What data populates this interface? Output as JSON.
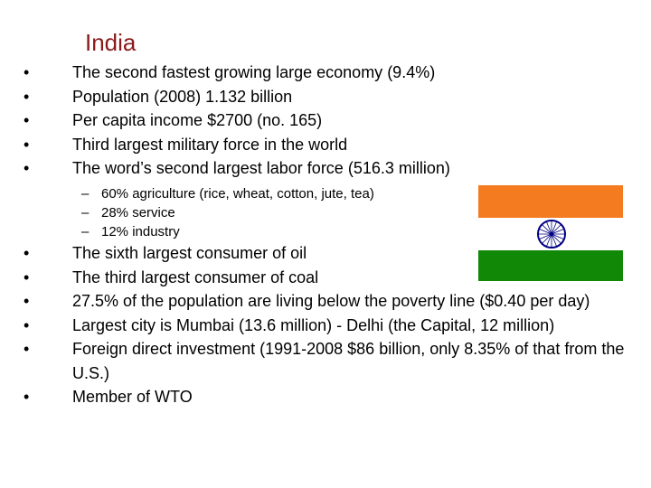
{
  "slide": {
    "title": "India",
    "bullet_glyph": "•",
    "dash_glyph": "–",
    "bullets_top": [
      "The second fastest growing large economy (9.4%)",
      "Population (2008) 1.132 billion",
      "Per capita income $2700 (no. 165)",
      "Third largest military force in the world",
      "The word’s second largest labor force (516.3 million)"
    ],
    "sub_bullets": [
      "60% agriculture (rice, wheat, cotton, jute, tea)",
      "28% service",
      "12% industry"
    ],
    "bullets_bottom": [
      "The sixth largest consumer of oil",
      "The third largest consumer of coal",
      "27.5% of the population are living below the poverty line ($0.40 per day)",
      "Largest city is Mumbai (13.6 million) - Delhi (the Capital, 12 million)",
      "Foreign direct investment (1991-2008 $86 billion, only 8.35% of that from the U.S.)",
      "Member of WTO"
    ]
  },
  "flag": {
    "icon": "india-flag-icon",
    "colors": {
      "saffron": "#f47b20",
      "white": "#ffffff",
      "green": "#128807",
      "chakra": "#000080"
    }
  },
  "colors": {
    "title": "#8b1a1a",
    "text": "#000000",
    "background": "#ffffff"
  }
}
